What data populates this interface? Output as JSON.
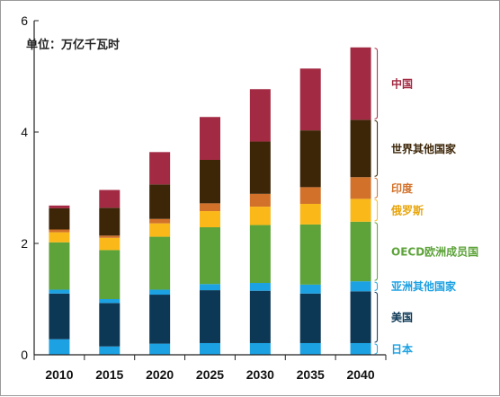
{
  "chart_data": {
    "type": "bar",
    "stacked": true,
    "unit_label": "单位：万亿千瓦时",
    "categories": [
      "2010",
      "2015",
      "2020",
      "2025",
      "2030",
      "2035",
      "2040"
    ],
    "ylim": [
      0,
      6
    ],
    "yticks": [
      "0",
      "2",
      "4",
      "6"
    ],
    "grid": false,
    "legend_placement": "right",
    "series": [
      {
        "name": "日本",
        "color": "#1ca1e2",
        "values": [
          0.28,
          0.15,
          0.2,
          0.21,
          0.21,
          0.21,
          0.21
        ]
      },
      {
        "name": "美国",
        "color": "#0c3856",
        "values": [
          0.82,
          0.78,
          0.88,
          0.95,
          0.94,
          0.89,
          0.93
        ]
      },
      {
        "name": "亚洲其他国家",
        "color": "#1ca1e2",
        "values": [
          0.07,
          0.07,
          0.09,
          0.11,
          0.14,
          0.16,
          0.18
        ]
      },
      {
        "name": "OECD欧洲成员国",
        "color": "#5da33a",
        "values": [
          0.85,
          0.88,
          0.95,
          1.02,
          1.04,
          1.08,
          1.07
        ]
      },
      {
        "name": "俄罗斯",
        "color": "#fbb919",
        "values": [
          0.18,
          0.22,
          0.24,
          0.29,
          0.33,
          0.37,
          0.41
        ]
      },
      {
        "name": "印度",
        "color": "#d2722a",
        "values": [
          0.05,
          0.04,
          0.08,
          0.14,
          0.23,
          0.3,
          0.39
        ]
      },
      {
        "name": "世界其他国家",
        "color": "#3d2608",
        "values": [
          0.38,
          0.5,
          0.62,
          0.78,
          0.94,
          1.02,
          1.03
        ]
      },
      {
        "name": "中国",
        "color": "#a32a43",
        "values": [
          0.05,
          0.32,
          0.58,
          0.77,
          0.94,
          1.11,
          1.3
        ]
      }
    ]
  }
}
